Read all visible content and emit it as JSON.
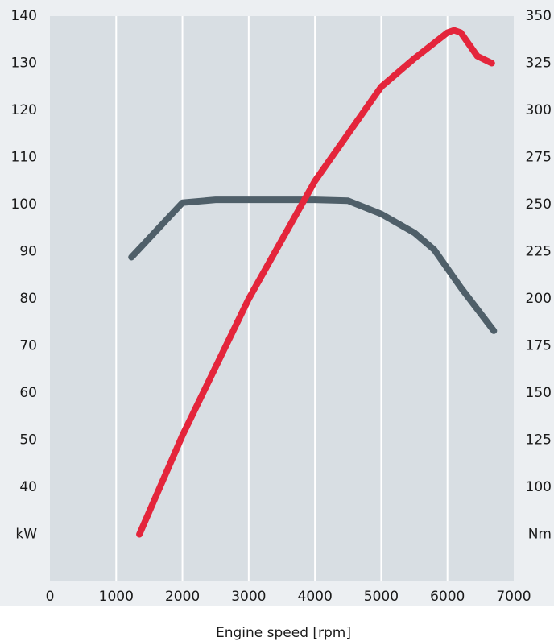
{
  "chart_data": {
    "type": "line",
    "x_label": "Engine speed [rpm]",
    "xlim": [
      0,
      7000
    ],
    "xticks": [
      0,
      1000,
      2000,
      3000,
      4000,
      5000,
      6000,
      7000
    ],
    "ylim": [
      20,
      140
    ],
    "yticks": [
      {
        "value": 30,
        "label": "kW"
      },
      40,
      50,
      60,
      70,
      80,
      90,
      100,
      110,
      120,
      130,
      140
    ],
    "y2lim": [
      50,
      350
    ],
    "y2ticks": [
      {
        "value": 75,
        "label": "Nm"
      },
      100,
      125,
      150,
      175,
      200,
      225,
      250,
      275,
      300,
      325,
      350
    ],
    "grid": true,
    "series": [
      {
        "color": "#e4253b",
        "axis": "y",
        "x": [
          1350,
          2000,
          3000,
          4000,
          5000,
          5500,
          6000,
          6100,
          6200,
          6300,
          6450,
          6670
        ],
        "values": [
          30,
          51,
          80,
          105,
          125,
          131,
          136.5,
          137,
          136.5,
          134.5,
          131.5,
          130
        ]
      },
      {
        "color": "#4f5f69",
        "axis": "y2",
        "x": [
          1230,
          2000,
          2500,
          3000,
          4000,
          4500,
          5000,
          5500,
          5800,
          6200,
          6700
        ],
        "values": [
          222,
          251,
          252.5,
          252.5,
          252.5,
          252,
          245,
          235,
          226,
          206,
          183
        ]
      }
    ]
  }
}
